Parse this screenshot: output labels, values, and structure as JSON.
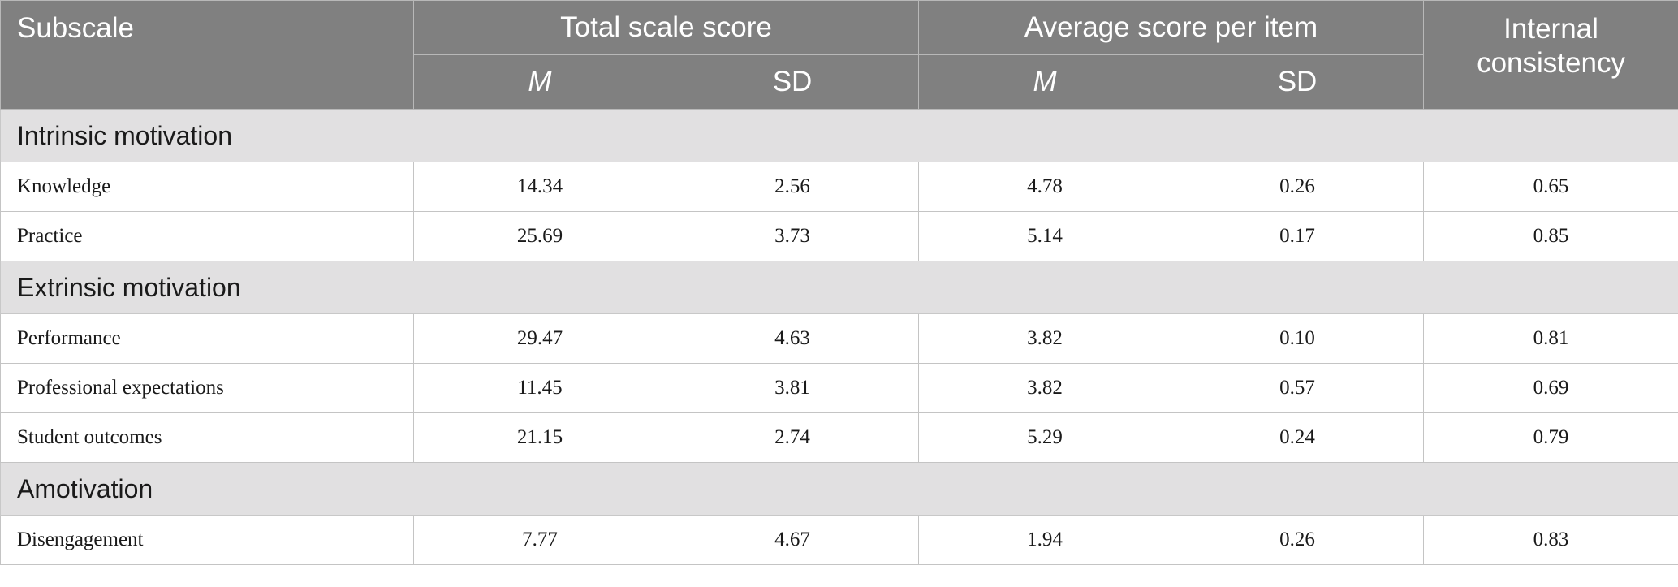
{
  "header": {
    "subscale": "Subscale",
    "total_scale_score": "Total scale score",
    "average_score_per_item": "Average score per item",
    "internal_consistency": "Internal consistency",
    "m": "M",
    "sd": "SD"
  },
  "sections": [
    {
      "title": "Intrinsic motivation",
      "rows": [
        {
          "label": "Knowledge",
          "total_m": "14.34",
          "total_sd": "2.56",
          "avg_m": "4.78",
          "avg_sd": "0.26",
          "ic": "0.65"
        },
        {
          "label": "Practice",
          "total_m": "25.69",
          "total_sd": "3.73",
          "avg_m": "5.14",
          "avg_sd": "0.17",
          "ic": "0.85"
        }
      ]
    },
    {
      "title": "Extrinsic motivation",
      "rows": [
        {
          "label": "Performance",
          "total_m": "29.47",
          "total_sd": "4.63",
          "avg_m": "3.82",
          "avg_sd": "0.10",
          "ic": "0.81"
        },
        {
          "label": "Professional expectations",
          "total_m": "11.45",
          "total_sd": "3.81",
          "avg_m": "3.82",
          "avg_sd": "0.57",
          "ic": "0.69"
        },
        {
          "label": "Student outcomes",
          "total_m": "21.15",
          "total_sd": "2.74",
          "avg_m": "5.29",
          "avg_sd": "0.24",
          "ic": "0.79"
        }
      ]
    },
    {
      "title": "Amotivation",
      "rows": [
        {
          "label": "Disengagement",
          "total_m": "7.77",
          "total_sd": "4.67",
          "avg_m": "1.94",
          "avg_sd": "0.26",
          "ic": "0.83"
        }
      ]
    }
  ],
  "colors": {
    "header_bg": "#808080",
    "section_bg": "#e1e0e1"
  }
}
